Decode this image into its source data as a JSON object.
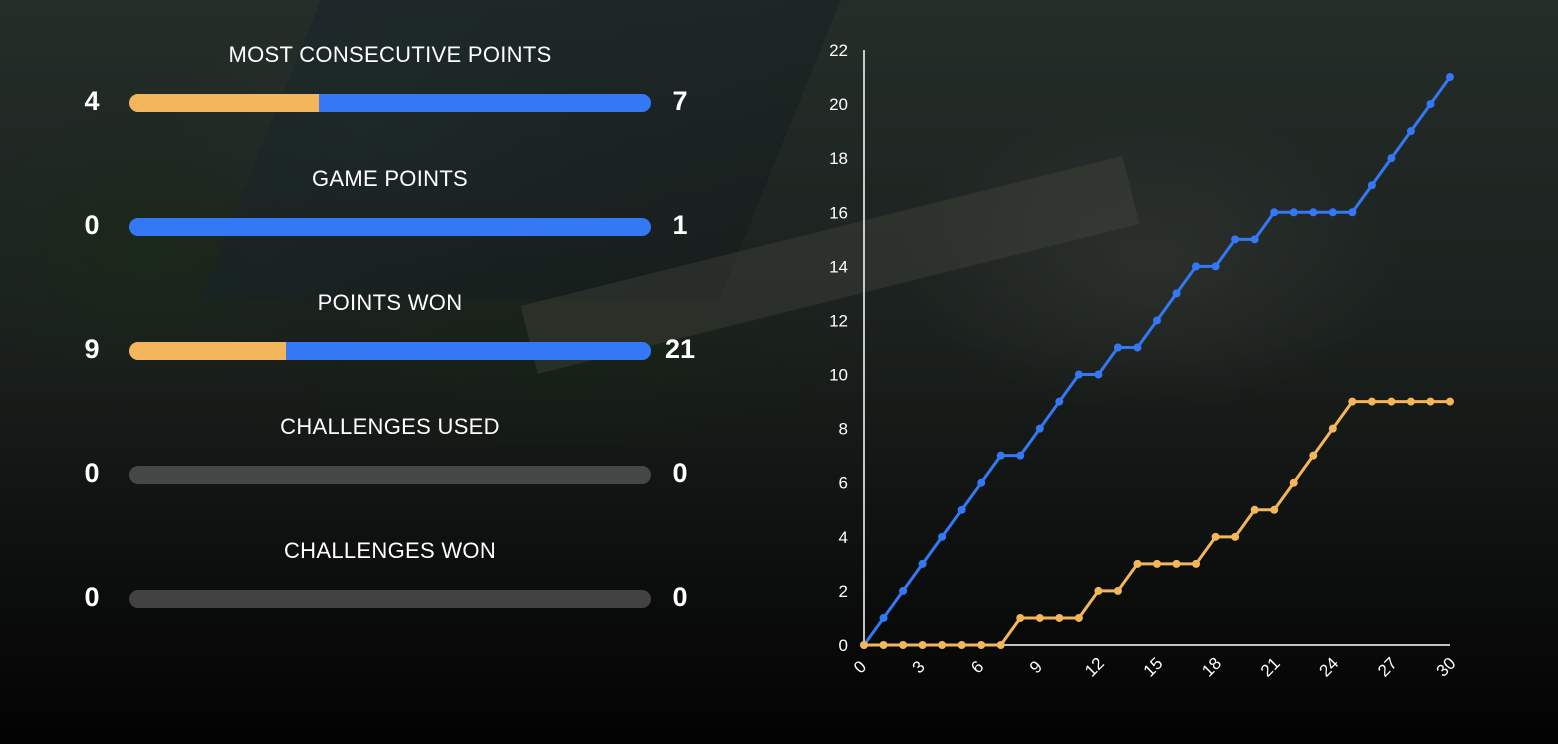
{
  "colors": {
    "team_a": "#f3b65a",
    "team_b": "#3478f6",
    "bar_empty": "#6b6b6b"
  },
  "stats": [
    {
      "title": "MOST CONSECUTIVE POINTS",
      "left": "4",
      "right": "7",
      "left_value": 4,
      "right_value": 7
    },
    {
      "title": "GAME POINTS",
      "left": "0",
      "right": "1",
      "left_value": 0,
      "right_value": 1
    },
    {
      "title": "POINTS WON",
      "left": "9",
      "right": "21",
      "left_value": 9,
      "right_value": 21
    },
    {
      "title": "CHALLENGES USED",
      "left": "0",
      "right": "0",
      "left_value": 0,
      "right_value": 0
    },
    {
      "title": "CHALLENGES WON",
      "left": "0",
      "right": "0",
      "left_value": 0,
      "right_value": 0
    }
  ],
  "chart_data": {
    "type": "line",
    "title": "",
    "xlabel": "",
    "ylabel": "",
    "x": [
      0,
      1,
      2,
      3,
      4,
      5,
      6,
      7,
      8,
      9,
      10,
      11,
      12,
      13,
      14,
      15,
      16,
      17,
      18,
      19,
      20,
      21,
      22,
      23,
      24,
      25,
      26,
      27,
      28,
      29,
      30
    ],
    "xlim": [
      0,
      30
    ],
    "ylim": [
      0,
      22
    ],
    "x_ticks": [
      0,
      3,
      6,
      9,
      12,
      15,
      18,
      21,
      24,
      27,
      30
    ],
    "y_ticks": [
      0,
      2,
      4,
      6,
      8,
      10,
      12,
      14,
      16,
      18,
      20,
      22
    ],
    "grid": false,
    "legend": "none",
    "series": [
      {
        "color": "#3478f6",
        "values": [
          0,
          1,
          2,
          3,
          4,
          5,
          6,
          7,
          7,
          8,
          9,
          10,
          10,
          11,
          11,
          12,
          13,
          14,
          14,
          15,
          15,
          16,
          16,
          16,
          16,
          16,
          17,
          18,
          19,
          20,
          21
        ]
      },
      {
        "color": "#f3b65a",
        "values": [
          0,
          0,
          0,
          0,
          0,
          0,
          0,
          0,
          1,
          1,
          1,
          1,
          2,
          2,
          3,
          3,
          3,
          3,
          4,
          4,
          5,
          5,
          6,
          7,
          8,
          9,
          9,
          9,
          9,
          9,
          9
        ]
      }
    ]
  }
}
